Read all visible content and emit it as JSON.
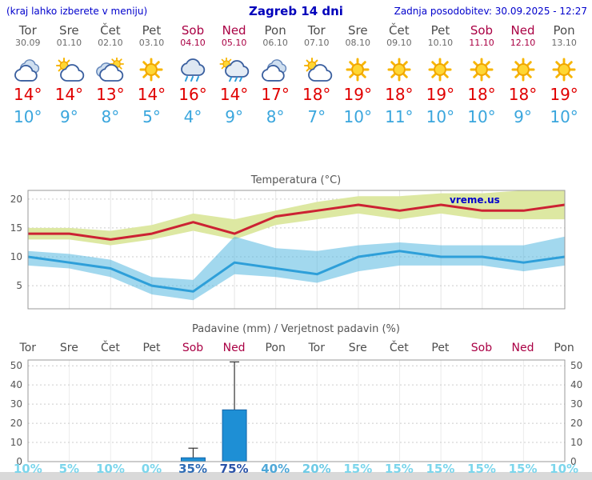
{
  "header": {
    "menu_hint": "(kraj lahko izberete v meniju)",
    "title": "Zagreb 14 dni",
    "last_update": "Zadnja posodobitev: 30.09.2025 - 12:27"
  },
  "days": [
    {
      "name": "Tor",
      "date": "30.09",
      "weekend": false,
      "icon": "cloudy",
      "tmax": "14",
      "tmin": "10"
    },
    {
      "name": "Sre",
      "date": "01.10",
      "weekend": false,
      "icon": "partly-cloudy",
      "tmax": "14",
      "tmin": "9"
    },
    {
      "name": "Čet",
      "date": "02.10",
      "weekend": false,
      "icon": "mostly-cloudy",
      "tmax": "13",
      "tmin": "8"
    },
    {
      "name": "Pet",
      "date": "03.10",
      "weekend": false,
      "icon": "sunny",
      "tmax": "14",
      "tmin": "5"
    },
    {
      "name": "Sob",
      "date": "04.10",
      "weekend": true,
      "icon": "rain",
      "tmax": "16",
      "tmin": "4"
    },
    {
      "name": "Ned",
      "date": "05.10",
      "weekend": true,
      "icon": "rain-sun",
      "tmax": "14",
      "tmin": "9"
    },
    {
      "name": "Pon",
      "date": "06.10",
      "weekend": false,
      "icon": "cloudy",
      "tmax": "17",
      "tmin": "8"
    },
    {
      "name": "Tor",
      "date": "07.10",
      "weekend": false,
      "icon": "partly-cloudy",
      "tmax": "18",
      "tmin": "7"
    },
    {
      "name": "Sre",
      "date": "08.10",
      "weekend": false,
      "icon": "sunny",
      "tmax": "19",
      "tmin": "10"
    },
    {
      "name": "Čet",
      "date": "09.10",
      "weekend": false,
      "icon": "sunny",
      "tmax": "18",
      "tmin": "11"
    },
    {
      "name": "Pet",
      "date": "10.10",
      "weekend": false,
      "icon": "sunny",
      "tmax": "19",
      "tmin": "10"
    },
    {
      "name": "Sob",
      "date": "11.10",
      "weekend": true,
      "icon": "sunny",
      "tmax": "18",
      "tmin": "10"
    },
    {
      "name": "Ned",
      "date": "12.10",
      "weekend": true,
      "icon": "sunny",
      "tmax": "18",
      "tmin": "9"
    },
    {
      "name": "Pon",
      "date": "13.10",
      "weekend": false,
      "icon": "sunny",
      "tmax": "19",
      "tmin": "10"
    }
  ],
  "chart_data": [
    {
      "type": "line",
      "title": "Temperatura (°C)",
      "x_labels": [
        "Tor",
        "Sre",
        "Čet",
        "Pet",
        "Sob",
        "Ned",
        "Pon",
        "Tor",
        "Sre",
        "Čet",
        "Pet",
        "Sob",
        "Ned",
        "Pon"
      ],
      "ylim": [
        1,
        21.5
      ],
      "yticks": [
        5,
        10,
        15,
        20
      ],
      "grid": true,
      "legend": "none",
      "watermark": "vreme.us",
      "series": [
        {
          "name": "max temperature",
          "color": "#cc2233",
          "band_color": "#dde8a2",
          "values": [
            14,
            14,
            13,
            14,
            16,
            14,
            17,
            18,
            19,
            18,
            19,
            18,
            18,
            19
          ],
          "upper": [
            15,
            15,
            14.5,
            15.5,
            17.5,
            16.5,
            18,
            19.5,
            20.5,
            20.5,
            21,
            21,
            21.5,
            23
          ],
          "lower": [
            13,
            13,
            12,
            13,
            14.5,
            13,
            15.5,
            16.5,
            17.5,
            16.5,
            17.5,
            16.5,
            16.5,
            16.5
          ]
        },
        {
          "name": "min temperature",
          "color": "#2e9fd9",
          "band_color": "#55b8e0",
          "values": [
            10,
            9,
            8,
            5,
            4,
            9,
            8,
            7,
            10,
            11,
            10,
            10,
            9,
            10
          ],
          "upper": [
            11,
            10.5,
            9.5,
            6.5,
            6,
            13.5,
            11.5,
            11,
            12,
            12.5,
            12,
            12,
            12,
            13.5
          ],
          "lower": [
            8.5,
            8,
            6.5,
            3.5,
            2.5,
            7,
            6.5,
            5.5,
            7.5,
            8.5,
            8.5,
            8.5,
            7.5,
            8.5
          ]
        }
      ]
    },
    {
      "type": "bar",
      "title": "Padavine (mm) / Verjetnost padavin (%)",
      "x_labels": [
        "Tor",
        "Sre",
        "Čet",
        "Pet",
        "Sob",
        "Ned",
        "Pon",
        "Tor",
        "Sre",
        "Čet",
        "Pet",
        "Sob",
        "Ned",
        "Pon"
      ],
      "ylim": [
        0,
        53
      ],
      "yticks": [
        0,
        10,
        20,
        30,
        40,
        50
      ],
      "bar_color": "#1e8fd5",
      "bars_mm": [
        0,
        0,
        0,
        0,
        2,
        27,
        0,
        0,
        0,
        0,
        0,
        0,
        0,
        0
      ],
      "whisker_max_mm": [
        0,
        0,
        0,
        0,
        7,
        52,
        0,
        0,
        0,
        0,
        0,
        0,
        0,
        0
      ],
      "probabilities": [
        {
          "label": "10%",
          "color": "#7cd6ec"
        },
        {
          "label": "5%",
          "color": "#7cd6ec"
        },
        {
          "label": "10%",
          "color": "#7cd6ec"
        },
        {
          "label": "0%",
          "color": "#7cd6ec"
        },
        {
          "label": "35%",
          "color": "#2f6cb5"
        },
        {
          "label": "75%",
          "color": "#2a52a8"
        },
        {
          "label": "40%",
          "color": "#4fa8d8"
        },
        {
          "label": "20%",
          "color": "#6fcbe6"
        },
        {
          "label": "15%",
          "color": "#7cd6ec"
        },
        {
          "label": "15%",
          "color": "#7cd6ec"
        },
        {
          "label": "15%",
          "color": "#7cd6ec"
        },
        {
          "label": "15%",
          "color": "#7cd6ec"
        },
        {
          "label": "15%",
          "color": "#7cd6ec"
        },
        {
          "label": "10%",
          "color": "#7cd6ec"
        }
      ]
    }
  ]
}
